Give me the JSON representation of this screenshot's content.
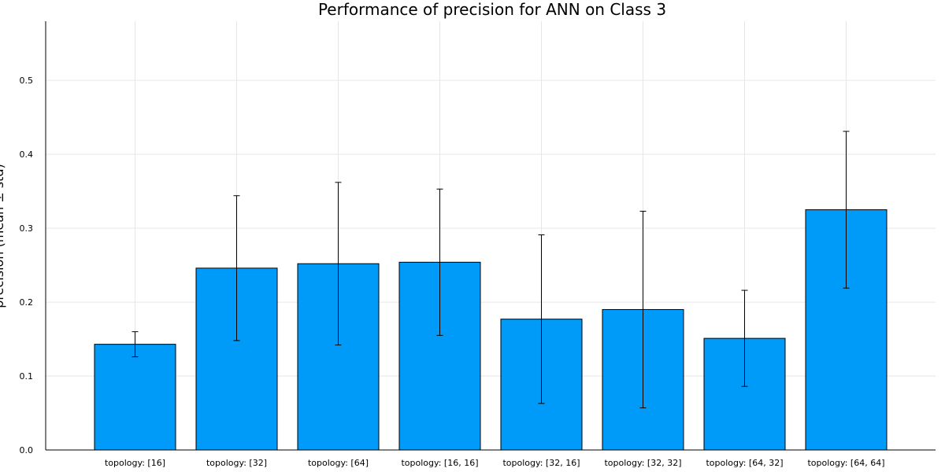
{
  "chart_data": {
    "type": "bar",
    "title": "Performance of precision for ANN on Class 3",
    "xlabel": "",
    "ylabel": "precision (mean ± std)",
    "categories": [
      "topology: [16]",
      "topology: [32]",
      "topology: [64]",
      "topology: [16, 16]",
      "topology: [32, 16]",
      "topology: [32, 32]",
      "topology: [64, 32]",
      "topology: [64, 64]"
    ],
    "values": [
      0.143,
      0.246,
      0.252,
      0.254,
      0.177,
      0.19,
      0.151,
      0.325
    ],
    "error": [
      0.017,
      0.098,
      0.11,
      0.099,
      0.114,
      0.133,
      0.065,
      0.106
    ],
    "yticks": [
      0.0,
      0.1,
      0.2,
      0.3,
      0.4,
      0.5
    ],
    "ytick_labels": [
      "0.0",
      "0.1",
      "0.2",
      "0.3",
      "0.4",
      "0.5"
    ],
    "ylim": [
      0,
      0.58
    ],
    "grid": true,
    "legend": "none",
    "colors": {
      "bar": "#009AF9",
      "bar_edge": "#000000",
      "grid": "#e6e6e6",
      "axis": "#000000"
    }
  }
}
